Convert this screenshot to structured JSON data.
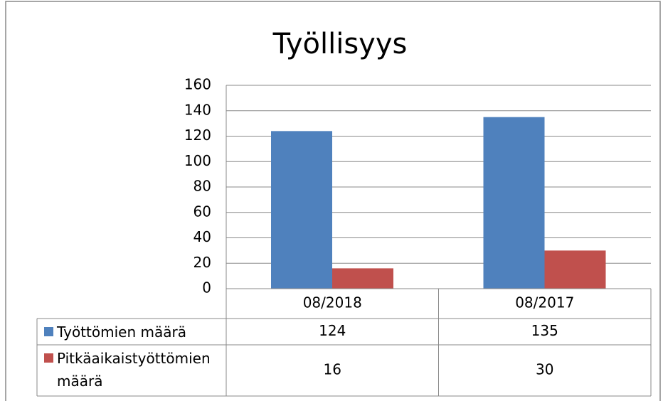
{
  "chart_data": {
    "type": "bar",
    "title": "Työllisyys",
    "categories": [
      "08/2018",
      "08/2017"
    ],
    "series": [
      {
        "name": "Työttömien määrä",
        "color": "#4f81bd",
        "values": [
          124,
          135
        ]
      },
      {
        "name": "Pitkäaikaistyöttömien määrä",
        "color": "#c0504d",
        "values": [
          16,
          30
        ]
      }
    ],
    "ylim": [
      0,
      160
    ],
    "yticks": [
      0,
      20,
      40,
      60,
      80,
      100,
      120,
      140,
      160
    ],
    "grid": true
  }
}
